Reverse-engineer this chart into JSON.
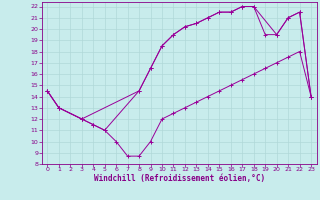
{
  "xlabel": "Windchill (Refroidissement éolien,°C)",
  "bg_color": "#c8ecec",
  "grid_color": "#b0d8d8",
  "line_color": "#990099",
  "xlim": [
    -0.5,
    23.5
  ],
  "ylim": [
    8,
    22.4
  ],
  "xticks": [
    0,
    1,
    2,
    3,
    4,
    5,
    6,
    7,
    8,
    9,
    10,
    11,
    12,
    13,
    14,
    15,
    16,
    17,
    18,
    19,
    20,
    21,
    22,
    23
  ],
  "yticks": [
    8,
    9,
    10,
    11,
    12,
    13,
    14,
    15,
    16,
    17,
    18,
    19,
    20,
    21,
    22
  ],
  "line1_x": [
    0,
    1,
    3,
    4,
    5,
    6,
    7,
    8,
    9,
    10,
    11,
    12,
    13,
    14,
    15,
    16,
    17,
    18,
    19,
    20,
    21,
    22,
    23
  ],
  "line1_y": [
    14.5,
    13.0,
    12.0,
    11.5,
    11.0,
    10.0,
    8.7,
    8.7,
    10.0,
    12.0,
    12.5,
    13.0,
    13.5,
    14.0,
    14.5,
    15.0,
    15.5,
    16.0,
    16.5,
    17.0,
    17.5,
    18.0,
    14.0
  ],
  "line2_x": [
    0,
    1,
    3,
    8,
    9,
    10,
    11,
    12,
    13,
    14,
    15,
    16,
    17,
    18,
    20,
    21,
    22,
    23
  ],
  "line2_y": [
    14.5,
    13.0,
    12.0,
    14.5,
    16.5,
    18.5,
    19.5,
    20.2,
    20.5,
    21.0,
    21.5,
    21.5,
    22.0,
    22.0,
    19.5,
    21.0,
    21.5,
    14.0
  ],
  "line3_x": [
    0,
    1,
    3,
    4,
    5,
    8,
    9,
    10,
    11,
    12,
    13,
    14,
    15,
    16,
    17,
    18,
    19,
    20,
    21,
    22,
    23
  ],
  "line3_y": [
    14.5,
    13.0,
    12.0,
    11.5,
    11.0,
    14.5,
    16.5,
    18.5,
    19.5,
    20.2,
    20.5,
    21.0,
    21.5,
    21.5,
    22.0,
    22.0,
    19.5,
    19.5,
    21.0,
    21.5,
    14.0
  ]
}
